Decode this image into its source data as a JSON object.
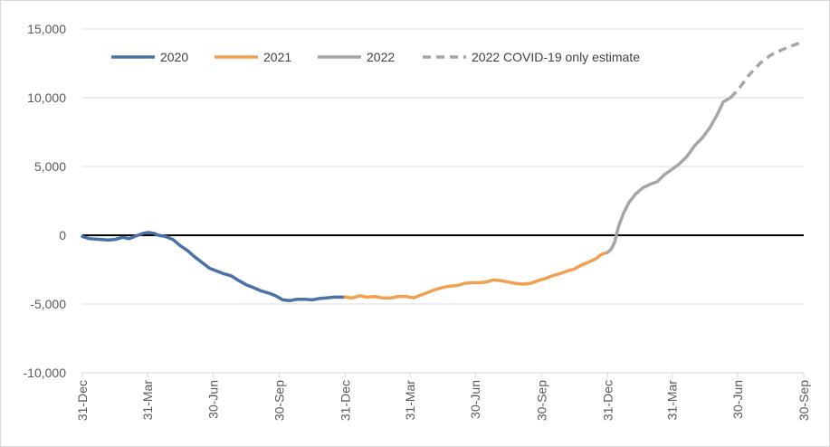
{
  "chart_data": {
    "type": "line",
    "title": "",
    "xlabel": "",
    "ylabel": "",
    "ylim": [
      -10000,
      15000
    ],
    "yticks": [
      -10000,
      -5000,
      0,
      5000,
      10000,
      15000
    ],
    "ytick_labels": [
      "-10,000",
      "-5,000",
      "0",
      "5,000",
      "10,000",
      "15,000"
    ],
    "xlim": [
      "2019-12-31",
      "2022-09-30"
    ],
    "xticks": [
      "2019-12-31",
      "2020-03-31",
      "2020-06-30",
      "2020-09-30",
      "2020-12-31",
      "2021-03-31",
      "2021-06-30",
      "2021-09-30",
      "2021-12-31",
      "2022-03-31",
      "2022-06-30",
      "2022-09-30"
    ],
    "xtick_labels": [
      "31-Dec",
      "31-Mar",
      "30-Jun",
      "30-Sep",
      "31-Dec",
      "31-Mar",
      "30-Jun",
      "30-Sep",
      "31-Dec",
      "31-Mar",
      "30-Jun",
      "30-Sep"
    ],
    "grid": true,
    "zero_line": true,
    "legend_position": "top-left",
    "series": [
      {
        "name": "2020",
        "color": "#4a72a8",
        "style": "solid",
        "points": [
          [
            "2019-12-31",
            -100
          ],
          [
            "2020-01-10",
            -250
          ],
          [
            "2020-01-25",
            -300
          ],
          [
            "2020-02-05",
            -350
          ],
          [
            "2020-02-15",
            -300
          ],
          [
            "2020-02-25",
            -150
          ],
          [
            "2020-03-05",
            -250
          ],
          [
            "2020-03-15",
            -50
          ],
          [
            "2020-03-25",
            150
          ],
          [
            "2020-04-01",
            200
          ],
          [
            "2020-04-08",
            150
          ],
          [
            "2020-04-15",
            0
          ],
          [
            "2020-04-25",
            -100
          ],
          [
            "2020-05-05",
            -300
          ],
          [
            "2020-05-15",
            -750
          ],
          [
            "2020-05-25",
            -1100
          ],
          [
            "2020-06-05",
            -1600
          ],
          [
            "2020-06-15",
            -2000
          ],
          [
            "2020-06-25",
            -2400
          ],
          [
            "2020-07-05",
            -2600
          ],
          [
            "2020-07-15",
            -2800
          ],
          [
            "2020-07-25",
            -2950
          ],
          [
            "2020-08-05",
            -3300
          ],
          [
            "2020-08-15",
            -3600
          ],
          [
            "2020-08-25",
            -3800
          ],
          [
            "2020-09-05",
            -4050
          ],
          [
            "2020-09-15",
            -4200
          ],
          [
            "2020-09-25",
            -4400
          ],
          [
            "2020-10-05",
            -4700
          ],
          [
            "2020-10-15",
            -4750
          ],
          [
            "2020-10-25",
            -4650
          ],
          [
            "2020-11-05",
            -4650
          ],
          [
            "2020-11-15",
            -4700
          ],
          [
            "2020-11-25",
            -4600
          ],
          [
            "2020-12-05",
            -4550
          ],
          [
            "2020-12-15",
            -4500
          ],
          [
            "2020-12-31",
            -4500
          ]
        ]
      },
      {
        "name": "2021",
        "color": "#f0a050",
        "style": "solid",
        "points": [
          [
            "2020-12-31",
            -4500
          ],
          [
            "2021-01-10",
            -4550
          ],
          [
            "2021-01-20",
            -4400
          ],
          [
            "2021-01-30",
            -4500
          ],
          [
            "2021-02-10",
            -4450
          ],
          [
            "2021-02-20",
            -4550
          ],
          [
            "2021-03-05",
            -4550
          ],
          [
            "2021-03-15",
            -4450
          ],
          [
            "2021-03-25",
            -4450
          ],
          [
            "2021-04-05",
            -4550
          ],
          [
            "2021-04-15",
            -4350
          ],
          [
            "2021-04-25",
            -4150
          ],
          [
            "2021-05-05",
            -3950
          ],
          [
            "2021-05-15",
            -3800
          ],
          [
            "2021-05-25",
            -3700
          ],
          [
            "2021-06-05",
            -3650
          ],
          [
            "2021-06-15",
            -3500
          ],
          [
            "2021-06-25",
            -3450
          ],
          [
            "2021-07-05",
            -3450
          ],
          [
            "2021-07-15",
            -3400
          ],
          [
            "2021-07-25",
            -3250
          ],
          [
            "2021-08-05",
            -3300
          ],
          [
            "2021-08-15",
            -3400
          ],
          [
            "2021-08-25",
            -3500
          ],
          [
            "2021-09-05",
            -3550
          ],
          [
            "2021-09-15",
            -3500
          ],
          [
            "2021-09-25",
            -3300
          ],
          [
            "2021-10-05",
            -3150
          ],
          [
            "2021-10-15",
            -2950
          ],
          [
            "2021-10-25",
            -2800
          ],
          [
            "2021-11-05",
            -2600
          ],
          [
            "2021-11-15",
            -2450
          ],
          [
            "2021-11-25",
            -2150
          ],
          [
            "2021-12-05",
            -1950
          ],
          [
            "2021-12-15",
            -1700
          ],
          [
            "2021-12-22",
            -1400
          ],
          [
            "2021-12-31",
            -1250
          ]
        ]
      },
      {
        "name": "2022",
        "color": "#a6a6a6",
        "style": "solid",
        "points": [
          [
            "2021-12-31",
            -1250
          ],
          [
            "2022-01-05",
            -1000
          ],
          [
            "2022-01-10",
            -500
          ],
          [
            "2022-01-15",
            600
          ],
          [
            "2022-01-22",
            1600
          ],
          [
            "2022-01-30",
            2400
          ],
          [
            "2022-02-08",
            3000
          ],
          [
            "2022-02-18",
            3450
          ],
          [
            "2022-02-28",
            3700
          ],
          [
            "2022-03-10",
            3900
          ],
          [
            "2022-03-20",
            4400
          ],
          [
            "2022-03-31",
            4800
          ],
          [
            "2022-04-10",
            5200
          ],
          [
            "2022-04-20",
            5700
          ],
          [
            "2022-05-01",
            6500
          ],
          [
            "2022-05-12",
            7100
          ],
          [
            "2022-05-22",
            7800
          ],
          [
            "2022-06-01",
            8700
          ],
          [
            "2022-06-10",
            9700
          ],
          [
            "2022-06-20",
            10000
          ]
        ]
      },
      {
        "name": "2022 COVID-19 only estimate",
        "color": "#a6a6a6",
        "style": "dashed",
        "points": [
          [
            "2022-06-20",
            10000
          ],
          [
            "2022-07-01",
            10600
          ],
          [
            "2022-07-15",
            11600
          ],
          [
            "2022-07-31",
            12500
          ],
          [
            "2022-08-15",
            13100
          ],
          [
            "2022-08-31",
            13500
          ],
          [
            "2022-09-15",
            13800
          ],
          [
            "2022-09-30",
            14100
          ]
        ]
      }
    ]
  }
}
